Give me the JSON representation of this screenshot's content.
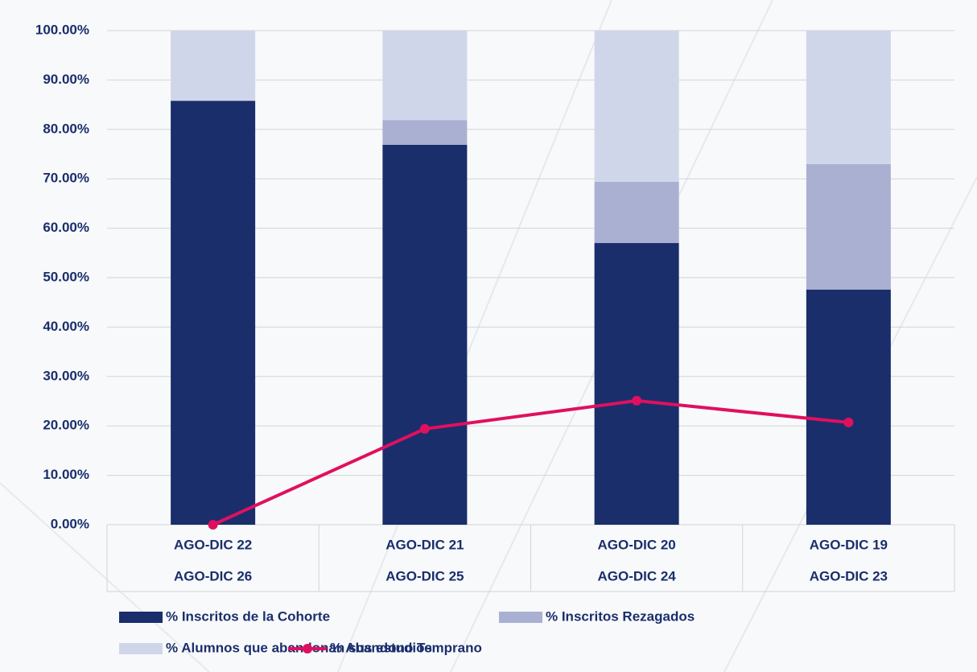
{
  "chart_data": {
    "type": "bar",
    "stacked": true,
    "grid": true,
    "legend": "bottom",
    "categories": [
      [
        "AGO-DIC 22",
        "AGO-DIC 26"
      ],
      [
        "AGO-DIC 21",
        "AGO-DIC 25"
      ],
      [
        "AGO-DIC 20",
        "AGO-DIC 24"
      ],
      [
        "AGO-DIC 19",
        "AGO-DIC 23"
      ]
    ],
    "series": [
      {
        "name": "% Inscritos de la Cohorte",
        "color": "#1a2e6c",
        "values": [
          85.8,
          76.9,
          57.0,
          47.6
        ]
      },
      {
        "name": "% Inscritos Rezagados",
        "color": "#aab0d2",
        "values": [
          0,
          5.0,
          12.4,
          25.4
        ]
      },
      {
        "name": "% Alumnos que abandonan sus estudios",
        "color": "#d0d6ea",
        "values": [
          14.2,
          18.1,
          30.6,
          27.0
        ]
      },
      {
        "name": "% Abandono Temprano",
        "color": "#e0105e",
        "type": "line",
        "values": [
          0,
          19.4,
          25.1,
          20.7
        ]
      }
    ],
    "ylim": [
      0,
      100
    ],
    "yticks": [
      {
        "value": 0,
        "label": "0.00%"
      },
      {
        "value": 10,
        "label": "10.00%"
      },
      {
        "value": 20,
        "label": "20.00%"
      },
      {
        "value": 30,
        "label": "30.00%"
      },
      {
        "value": 40,
        "label": "40.00%"
      },
      {
        "value": 50,
        "label": "50.00%"
      },
      {
        "value": 60,
        "label": "60.00%"
      },
      {
        "value": 70,
        "label": "70.00%"
      },
      {
        "value": 80,
        "label": "80.00%"
      },
      {
        "value": 90,
        "label": "90.00%"
      },
      {
        "value": 100,
        "label": "100.00%"
      }
    ]
  }
}
